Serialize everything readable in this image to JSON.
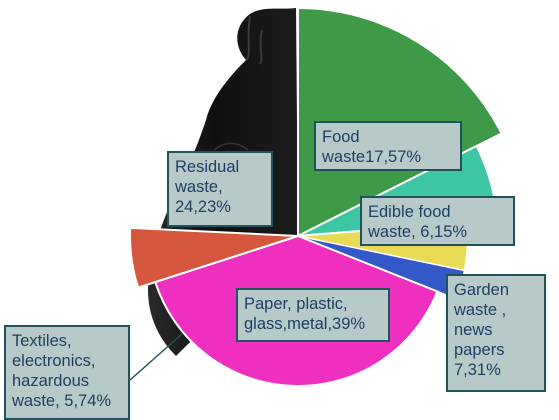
{
  "chart_data": {
    "type": "pie",
    "slices": [
      {
        "label": "Food\nwaste17,57%",
        "value": 17.57,
        "color": "#3f9a47"
      },
      {
        "label": "Edible food\nwaste, 6,15%",
        "value": 6.15,
        "color": "#3ec6a4"
      },
      {
        "label": "Garden\nwaste ,\nnews\npapers\n7,31%",
        "value": 7.31,
        "color": "#e9da55",
        "alt_color": "#3558c8"
      },
      {
        "label": "Paper, plastic,\nglass,metal,39%",
        "value": 39,
        "color": "#ee2fbf"
      },
      {
        "label": "Textiles,\nelectronics,\nhazardous\nwaste, 5,74%",
        "value": 5.74,
        "color": "#d4573e"
      },
      {
        "label": "Residual\nwaste,\n24,23%",
        "value": 24.23,
        "color": "#151515"
      }
    ],
    "background_image": "black-garbage-bag"
  }
}
